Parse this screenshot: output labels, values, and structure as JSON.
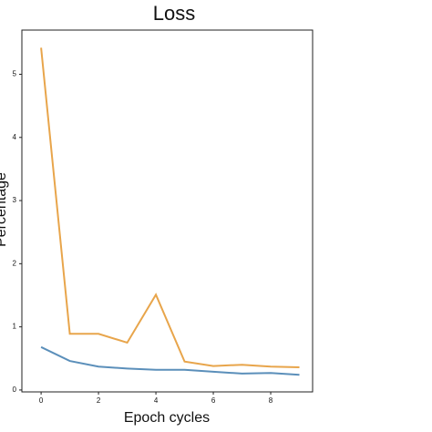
{
  "chart_data": {
    "type": "line",
    "title": "Loss",
    "x_label": "Epoch cycles",
    "y_label": "Percentage",
    "x": [
      0,
      1,
      2,
      3,
      4,
      5,
      6,
      7,
      8,
      9
    ],
    "series": [
      {
        "color": "#e8a54b",
        "values": [
          5.42,
          0.89,
          0.89,
          0.75,
          1.51,
          0.45,
          0.38,
          0.4,
          0.37,
          0.36
        ]
      },
      {
        "color": "#5b8fba",
        "values": [
          0.68,
          0.46,
          0.37,
          0.34,
          0.32,
          0.32,
          0.29,
          0.26,
          0.27,
          0.24
        ]
      }
    ],
    "xlim": [
      -0.67,
      9.46
    ],
    "xticks": [
      0,
      2,
      4,
      6,
      8
    ],
    "ylim": [
      -0.03,
      5.7
    ],
    "yticks": [
      0,
      1,
      2,
      3,
      4,
      5
    ],
    "grid": false
  }
}
